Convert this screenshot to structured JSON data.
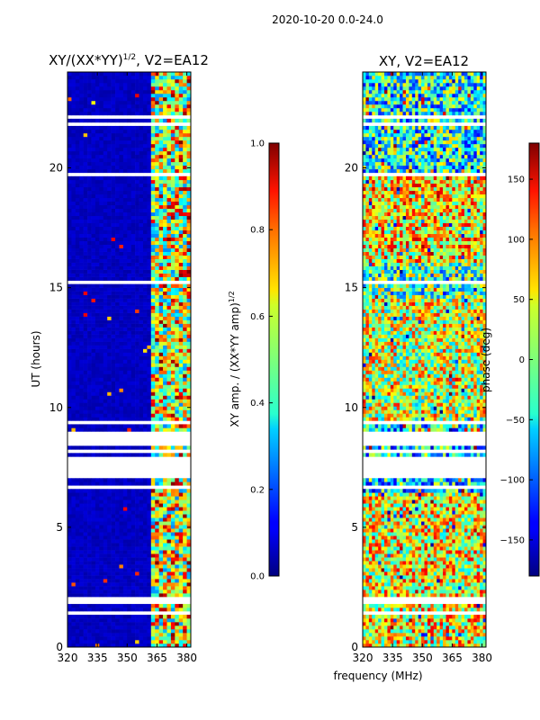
{
  "figure": {
    "suptitle": "2020-10-20 0.0-24.0",
    "xlabel_shared": "frequency (MHz)"
  },
  "chart_data": [
    {
      "type": "heatmap",
      "title": "XY/(XX*YY)",
      "title_sup": "1/2",
      "title_suffix": ", V2=EA12",
      "xlabel": "",
      "ylabel": "UT (hours)",
      "xlim": [
        320,
        382
      ],
      "ylim": [
        0,
        24
      ],
      "xticks": [
        320,
        335,
        350,
        365,
        380
      ],
      "yticks": [
        0,
        5,
        10,
        15,
        20
      ],
      "colorscale": "jet",
      "rfi_band_mhz": [
        362,
        381
      ],
      "colorbar": {
        "label": "XY amp. / (XX*YY amp)",
        "label_sup": "1/2",
        "range": [
          0.0,
          1.0
        ],
        "ticks": [
          "0.0",
          "0.2",
          "0.4",
          "0.6",
          "0.8",
          "1.0"
        ]
      }
    },
    {
      "type": "heatmap",
      "title": "XY, V2=EA12",
      "xlabel": "frequency (MHz)",
      "ylabel": "",
      "xlim": [
        320,
        382
      ],
      "ylim": [
        0,
        24
      ],
      "xticks": [
        320,
        335,
        350,
        365,
        380
      ],
      "yticks": [
        0,
        5,
        10,
        15,
        20
      ],
      "colorscale": "jet",
      "colorbar": {
        "label": "phase (deg)",
        "range": [
          -180,
          180
        ],
        "ticks": [
          "−150",
          "−100",
          "−50",
          "0",
          "50",
          "100",
          "150"
        ]
      }
    }
  ]
}
